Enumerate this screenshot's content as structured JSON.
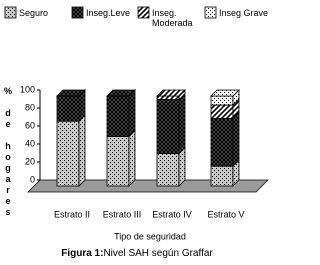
{
  "chart_data": {
    "type": "stacked_bar_3d",
    "caption_label": "Figura 1:",
    "title": "Nivel SAH según Graffar",
    "x_label": "Tipo de seguridad",
    "y_label": "% de hogares",
    "categories": [
      "Estrato II",
      "Estrato III",
      "Estrato IV",
      "Estrato V"
    ],
    "series": [
      {
        "name": "Seguro",
        "color": "#c8c8c8",
        "pattern": "dots",
        "values": [
          72,
          55,
          36,
          22
        ]
      },
      {
        "name": "Inseg.Leve",
        "color": "#555555",
        "pattern": "crosshatch",
        "values": [
          28,
          45,
          60,
          53
        ]
      },
      {
        "name": "Inseg. Moderada",
        "color": "#ffffff",
        "pattern": "diagonal",
        "values": [
          0,
          0,
          4,
          15
        ]
      },
      {
        "name": "Inseg Grave",
        "color": "#f4f4f4",
        "pattern": "dots",
        "values": [
          0,
          0,
          0,
          10
        ]
      }
    ],
    "ylim": [
      0,
      100
    ],
    "yticks": [
      0,
      20,
      40,
      60,
      80,
      100
    ]
  }
}
